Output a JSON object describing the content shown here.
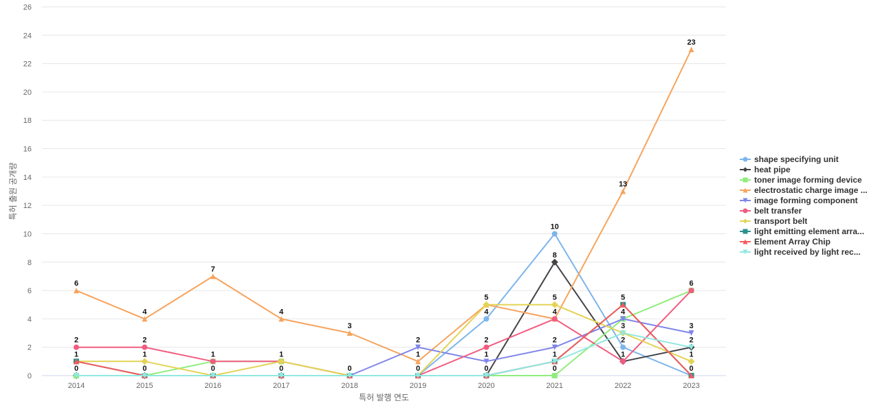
{
  "chart_data": {
    "type": "line",
    "title": "",
    "xlabel": "특허 발행 연도",
    "ylabel": "특허 출원 공개량",
    "x": [
      "2014",
      "2015",
      "2016",
      "2017",
      "2018",
      "2019",
      "2020",
      "2021",
      "2022",
      "2023"
    ],
    "ylim": [
      0,
      26
    ],
    "yticks": [
      "0",
      "2",
      "4",
      "6",
      "8",
      "10",
      "12",
      "14",
      "16",
      "18",
      "20",
      "22",
      "24",
      "26"
    ],
    "grid": true,
    "legend_position": "right",
    "series": [
      {
        "name": "shape specifying unit",
        "color": "#7cb5ec",
        "marker": "circle",
        "values": [
          0,
          0,
          0,
          0,
          0,
          0,
          4,
          10,
          2,
          0
        ]
      },
      {
        "name": "heat pipe",
        "color": "#434348",
        "marker": "diamond",
        "values": [
          0,
          0,
          0,
          0,
          0,
          0,
          0,
          8,
          1,
          2
        ]
      },
      {
        "name": "toner image forming device",
        "color": "#90ed7d",
        "marker": "square",
        "values": [
          0,
          0,
          1,
          1,
          0,
          0,
          0,
          0,
          4,
          6
        ]
      },
      {
        "name": "electrostatic charge image ...",
        "color": "#f7a35c",
        "marker": "triangle",
        "values": [
          6,
          4,
          7,
          4,
          3,
          1,
          5,
          4,
          13,
          23
        ]
      },
      {
        "name": "image forming component",
        "color": "#8085e9",
        "marker": "triangle-down",
        "values": [
          0,
          0,
          0,
          0,
          0,
          2,
          1,
          2,
          4,
          3
        ]
      },
      {
        "name": "belt transfer",
        "color": "#f15c80",
        "marker": "circle",
        "values": [
          2,
          2,
          1,
          1,
          0,
          0,
          2,
          4,
          1,
          6
        ]
      },
      {
        "name": "transport belt",
        "color": "#e4d354",
        "marker": "diamond",
        "values": [
          1,
          1,
          0,
          1,
          0,
          0,
          5,
          5,
          3,
          1
        ]
      },
      {
        "name": "light emitting element arra...",
        "color": "#2b908f",
        "marker": "square",
        "values": [
          1,
          0,
          0,
          0,
          0,
          0,
          0,
          1,
          5,
          0
        ]
      },
      {
        "name": "Element Array Chip",
        "color": "#f45b5b",
        "marker": "triangle",
        "values": [
          1,
          0,
          0,
          0,
          0,
          0,
          0,
          1,
          5,
          0
        ]
      },
      {
        "name": "light received by light rec...",
        "color": "#91e8e1",
        "marker": "triangle-down",
        "values": [
          0,
          0,
          0,
          0,
          0,
          0,
          0,
          1,
          3,
          2
        ]
      }
    ],
    "data_labels": [
      {
        "x": "2014",
        "text": "6",
        "value": 6
      },
      {
        "x": "2014",
        "text": "2",
        "value": 2
      },
      {
        "x": "2014",
        "text": "1",
        "value": 1
      },
      {
        "x": "2014",
        "text": "0",
        "value": 0
      },
      {
        "x": "2015",
        "text": "4",
        "value": 4
      },
      {
        "x": "2015",
        "text": "2",
        "value": 2
      },
      {
        "x": "2015",
        "text": "1",
        "value": 1
      },
      {
        "x": "2015",
        "text": "0",
        "value": 0
      },
      {
        "x": "2016",
        "text": "7",
        "value": 7
      },
      {
        "x": "2016",
        "text": "1",
        "value": 1
      },
      {
        "x": "2016",
        "text": "0",
        "value": 0
      },
      {
        "x": "2017",
        "text": "4",
        "value": 4
      },
      {
        "x": "2017",
        "text": "1",
        "value": 1
      },
      {
        "x": "2017",
        "text": "0",
        "value": 0
      },
      {
        "x": "2018",
        "text": "3",
        "value": 3
      },
      {
        "x": "2018",
        "text": "0",
        "value": 0
      },
      {
        "x": "2019",
        "text": "2",
        "value": 2
      },
      {
        "x": "2019",
        "text": "1",
        "value": 1
      },
      {
        "x": "2019",
        "text": "0",
        "value": 0
      },
      {
        "x": "2020",
        "text": "5",
        "value": 5
      },
      {
        "x": "2020",
        "text": "4",
        "value": 4
      },
      {
        "x": "2020",
        "text": "2",
        "value": 2
      },
      {
        "x": "2020",
        "text": "1",
        "value": 1
      },
      {
        "x": "2020",
        "text": "0",
        "value": 0
      },
      {
        "x": "2021",
        "text": "10",
        "value": 10
      },
      {
        "x": "2021",
        "text": "8",
        "value": 8
      },
      {
        "x": "2021",
        "text": "5",
        "value": 5
      },
      {
        "x": "2021",
        "text": "4",
        "value": 4
      },
      {
        "x": "2021",
        "text": "2",
        "value": 2
      },
      {
        "x": "2021",
        "text": "1",
        "value": 1
      },
      {
        "x": "2021",
        "text": "0",
        "value": 0
      },
      {
        "x": "2022",
        "text": "13",
        "value": 13
      },
      {
        "x": "2022",
        "text": "5",
        "value": 5
      },
      {
        "x": "2022",
        "text": "4",
        "value": 4
      },
      {
        "x": "2022",
        "text": "3",
        "value": 3
      },
      {
        "x": "2022",
        "text": "2",
        "value": 2
      },
      {
        "x": "2022",
        "text": "1",
        "value": 1
      },
      {
        "x": "2023",
        "text": "23",
        "value": 23
      },
      {
        "x": "2023",
        "text": "6",
        "value": 6
      },
      {
        "x": "2023",
        "text": "3",
        "value": 3
      },
      {
        "x": "2023",
        "text": "2",
        "value": 2
      },
      {
        "x": "2023",
        "text": "1",
        "value": 1
      },
      {
        "x": "2023",
        "text": "0",
        "value": 0
      }
    ]
  }
}
